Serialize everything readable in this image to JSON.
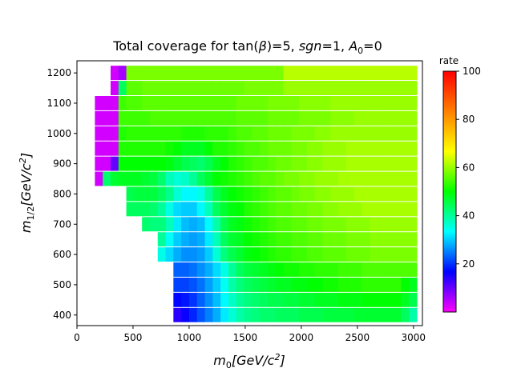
{
  "chart_data": {
    "type": "heatmap",
    "title": "Total coverage for tan(β)=5, sgn=1, A₀=0",
    "title_parts": {
      "prefix": "Total coverage for tan(",
      "beta": "β",
      "mid": ")=5, ",
      "sgn": "sgn",
      "eq1": "=1, ",
      "a": "A",
      "a_sub": "0",
      "eq0": "=0"
    },
    "xlabel": "m₀[GeV/c²]",
    "xlabel_parts": {
      "m": "m",
      "sub": "0",
      "unit": "[GeV/c",
      "sup": "2",
      "close": "]"
    },
    "ylabel": "m₁/₂[GeV/c²]",
    "ylabel_parts": {
      "m": "m",
      "sub": "1/2",
      "unit": "[GeV/c",
      "sup": "2",
      "close": "]"
    },
    "xlim": [
      0,
      3080
    ],
    "ylim": [
      365,
      1240
    ],
    "x_ticks": [
      0,
      500,
      1000,
      1500,
      2000,
      2500,
      3000
    ],
    "y_ticks": [
      400,
      500,
      600,
      700,
      800,
      900,
      1000,
      1100,
      1200
    ],
    "colorbar": {
      "label": "rate",
      "min": 0,
      "max": 100,
      "ticks": [
        20,
        40,
        60,
        80,
        100
      ]
    },
    "grid": false,
    "cells": [
      {
        "y": 1200,
        "x0": 300,
        "x1": 3000,
        "values": [
          3,
          6,
          58,
          58,
          58,
          58,
          58,
          58,
          58,
          58,
          58,
          58,
          58,
          58,
          58,
          58,
          58,
          58,
          58,
          58,
          58,
          58,
          62,
          62,
          62,
          62,
          62,
          62,
          62,
          62,
          62,
          62,
          62,
          62,
          62,
          62,
          62,
          62,
          62
        ]
      },
      {
        "y": 1150,
        "x0": 300,
        "x1": 3000,
        "values": [
          3,
          44,
          56,
          56,
          57,
          57,
          57,
          57,
          57,
          57,
          57,
          57,
          57,
          57,
          57,
          57,
          57,
          58,
          58,
          58,
          58,
          58,
          60,
          60,
          60,
          60,
          60,
          60,
          60,
          60,
          60,
          60,
          60,
          60,
          60,
          60,
          60,
          60,
          60
        ]
      },
      {
        "y": 1100,
        "x0": 160,
        "x1": 3000,
        "values": [
          3,
          3,
          3,
          54,
          55,
          55,
          56,
          56,
          56,
          56,
          56,
          56,
          56,
          56,
          56,
          56,
          56,
          56,
          57,
          57,
          57,
          57,
          58,
          58,
          58,
          58,
          59,
          59,
          59,
          59,
          60,
          60,
          60,
          60,
          60,
          60,
          60,
          60,
          60,
          60,
          60
        ]
      },
      {
        "y": 1050,
        "x0": 160,
        "x1": 3000,
        "values": [
          3,
          3,
          3,
          54,
          54,
          54,
          54,
          55,
          55,
          55,
          55,
          55,
          55,
          55,
          55,
          55,
          55,
          55,
          56,
          56,
          56,
          56,
          57,
          57,
          57,
          57,
          58,
          58,
          58,
          58,
          59,
          59,
          59,
          60,
          60,
          60,
          60,
          60,
          60,
          60,
          60
        ]
      },
      {
        "y": 1000,
        "x0": 160,
        "x1": 3000,
        "values": [
          3,
          3,
          3,
          52,
          53,
          53,
          53,
          53,
          53,
          53,
          53,
          52,
          52,
          52,
          53,
          53,
          53,
          54,
          55,
          55,
          56,
          56,
          57,
          57,
          57,
          58,
          58,
          58,
          59,
          59,
          60,
          60,
          60,
          60,
          60,
          60,
          60,
          60,
          60,
          60,
          60
        ]
      },
      {
        "y": 950,
        "x0": 160,
        "x1": 3000,
        "values": [
          3,
          3,
          3,
          52,
          52,
          52,
          52,
          52,
          52,
          51,
          50,
          48,
          48,
          48,
          50,
          52,
          52,
          53,
          54,
          55,
          55,
          56,
          57,
          57,
          57,
          58,
          58,
          59,
          59,
          60,
          60,
          60,
          61,
          61,
          61,
          61,
          61,
          61,
          61,
          61,
          61
        ]
      },
      {
        "y": 900,
        "x0": 160,
        "x1": 3000,
        "values": [
          3,
          3,
          10,
          50,
          50,
          50,
          50,
          50,
          50,
          49,
          47,
          45,
          44,
          43,
          45,
          48,
          50,
          52,
          53,
          54,
          55,
          55,
          56,
          57,
          57,
          58,
          58,
          59,
          59,
          60,
          60,
          60,
          61,
          61,
          61,
          61,
          61,
          61,
          61,
          61,
          61
        ]
      },
      {
        "y": 850,
        "x0": 160,
        "x1": 3000,
        "values": [
          3,
          43,
          47,
          48,
          48,
          48,
          47,
          46,
          43,
          38,
          36,
          37,
          40,
          44,
          47,
          50,
          51,
          52,
          53,
          54,
          55,
          56,
          56,
          57,
          58,
          58,
          59,
          59,
          60,
          60,
          60,
          61,
          61,
          61,
          61,
          61,
          61,
          61,
          61,
          61,
          61
        ]
      },
      {
        "y": 800,
        "x0": 440,
        "x1": 3000,
        "values": [
          45,
          46,
          46,
          46,
          44,
          41,
          36,
          33,
          33,
          35,
          40,
          45,
          48,
          50,
          51,
          52,
          53,
          54,
          55,
          56,
          56,
          57,
          58,
          58,
          59,
          59,
          60,
          60,
          60,
          61,
          61,
          61,
          61,
          61,
          61,
          61,
          61
        ]
      },
      {
        "y": 750,
        "x0": 440,
        "x1": 3000,
        "values": [
          44,
          44,
          44,
          43,
          40,
          35,
          31,
          30,
          30,
          33,
          38,
          44,
          47,
          49,
          50,
          52,
          53,
          54,
          55,
          56,
          56,
          57,
          57,
          58,
          58,
          59,
          59,
          60,
          60,
          60,
          61,
          61,
          61,
          61,
          61,
          61,
          61
        ]
      },
      {
        "y": 700,
        "x0": 580,
        "x1": 3000,
        "values": [
          43,
          42,
          42,
          38,
          32,
          29,
          28,
          29,
          33,
          39,
          45,
          48,
          49,
          51,
          52,
          53,
          54,
          55,
          55,
          56,
          56,
          57,
          57,
          58,
          58,
          58,
          59,
          59,
          59,
          60,
          60,
          60,
          60,
          60,
          60
        ]
      },
      {
        "y": 650,
        "x0": 720,
        "x1": 3000,
        "values": [
          40,
          34,
          30,
          28,
          27,
          28,
          32,
          38,
          44,
          47,
          48,
          50,
          51,
          52,
          53,
          54,
          54,
          55,
          55,
          56,
          56,
          57,
          57,
          57,
          58,
          58,
          58,
          59,
          59,
          59,
          59,
          59,
          59
        ]
      },
      {
        "y": 600,
        "x0": 720,
        "x1": 3000,
        "values": [
          35,
          31,
          28,
          26,
          26,
          27,
          30,
          36,
          42,
          45,
          47,
          49,
          50,
          51,
          52,
          53,
          53,
          54,
          54,
          55,
          55,
          56,
          56,
          56,
          57,
          57,
          57,
          58,
          58,
          58,
          58,
          58,
          58
        ]
      },
      {
        "y": 550,
        "x0": 860,
        "x1": 3000,
        "values": [
          23,
          23,
          24,
          26,
          28,
          31,
          35,
          40,
          44,
          46,
          47,
          48,
          49,
          50,
          51,
          51,
          52,
          52,
          53,
          53,
          53,
          54,
          54,
          54,
          55,
          55,
          55,
          55,
          55,
          55,
          55
        ]
      },
      {
        "y": 500,
        "x0": 860,
        "x1": 3000,
        "values": [
          21,
          21,
          22,
          24,
          27,
          30,
          34,
          39,
          42,
          44,
          45,
          46,
          47,
          48,
          48,
          49,
          49,
          50,
          50,
          51,
          51,
          52,
          52,
          52,
          53,
          53,
          53,
          53,
          53,
          50,
          48
        ]
      },
      {
        "y": 450,
        "x0": 860,
        "x1": 3000,
        "values": [
          17,
          18,
          20,
          23,
          26,
          29,
          33,
          37,
          40,
          42,
          43,
          44,
          45,
          45,
          46,
          46,
          47,
          47,
          48,
          48,
          48,
          49,
          49,
          49,
          50,
          50,
          50,
          50,
          50,
          48,
          45
        ]
      },
      {
        "y": 400,
        "x0": 860,
        "x1": 3000,
        "values": [
          14,
          16,
          19,
          22,
          25,
          28,
          32,
          36,
          39,
          41,
          42,
          43,
          43,
          44,
          44,
          44,
          45,
          45,
          45,
          46,
          46,
          46,
          46,
          47,
          47,
          47,
          47,
          47,
          47,
          44,
          39
        ]
      }
    ]
  }
}
